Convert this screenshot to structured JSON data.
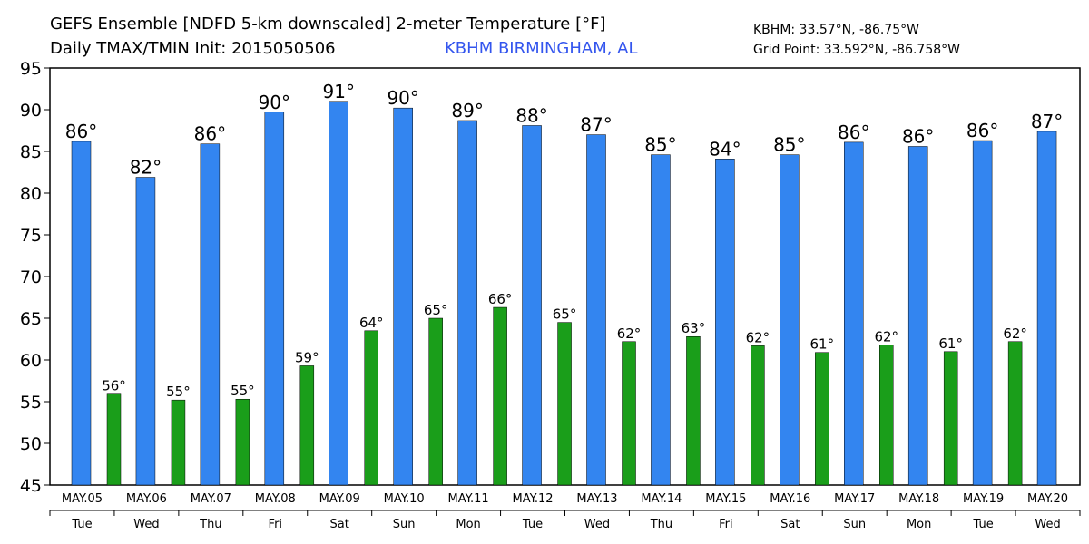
{
  "chart_data": {
    "type": "bar",
    "title": "GEFS Ensemble [NDFD 5-km downscaled] 2-meter Temperature [°F]",
    "subtitle": "Daily TMAX/TMIN Init: 2015050506",
    "location": "KBHM BIRMINGHAM, AL",
    "station": "KBHM: 33.57°N, -86.75°W",
    "grid_point": "Grid Point: 33.592°N, -86.758°W",
    "categories": [
      "MAY.05",
      "MAY.06",
      "MAY.07",
      "MAY.08",
      "MAY.09",
      "MAY.10",
      "MAY.11",
      "MAY.12",
      "MAY.13",
      "MAY.14",
      "MAY.15",
      "MAY.16",
      "MAY.17",
      "MAY.18",
      "MAY.19",
      "MAY.20"
    ],
    "days": [
      "Tue",
      "Wed",
      "Thu",
      "Fri",
      "Sat",
      "Sun",
      "Mon",
      "Tue",
      "Wed",
      "Thu",
      "Fri",
      "Sat",
      "Sun",
      "Mon",
      "Tue",
      "Wed"
    ],
    "series": [
      {
        "color": "#3385f0",
        "values": [
          86.2,
          81.9,
          85.9,
          89.7,
          91.0,
          90.2,
          88.7,
          88.1,
          87.0,
          84.6,
          84.1,
          84.6,
          86.1,
          85.6,
          86.3,
          87.4
        ],
        "value_labels": [
          "86°",
          "82°",
          "86°",
          "90°",
          "91°",
          "90°",
          "89°",
          "88°",
          "87°",
          "85°",
          "84°",
          "85°",
          "86°",
          "86°",
          "86°",
          "87°"
        ]
      },
      {
        "color": "#1a9e1a",
        "values": [
          55.9,
          55.2,
          55.3,
          59.3,
          63.5,
          65.0,
          66.3,
          64.5,
          62.2,
          62.8,
          61.7,
          60.9,
          61.8,
          61.0,
          62.2,
          null
        ],
        "value_labels": [
          "56°",
          "55°",
          "55°",
          "59°",
          "64°",
          "65°",
          "66°",
          "65°",
          "62°",
          "63°",
          "62°",
          "61°",
          "62°",
          "61°",
          "62°",
          null
        ]
      }
    ],
    "ylim": [
      45,
      95
    ],
    "yticks": [
      45,
      50,
      55,
      60,
      65,
      70,
      75,
      80,
      85,
      90,
      95
    ],
    "grid": false
  }
}
